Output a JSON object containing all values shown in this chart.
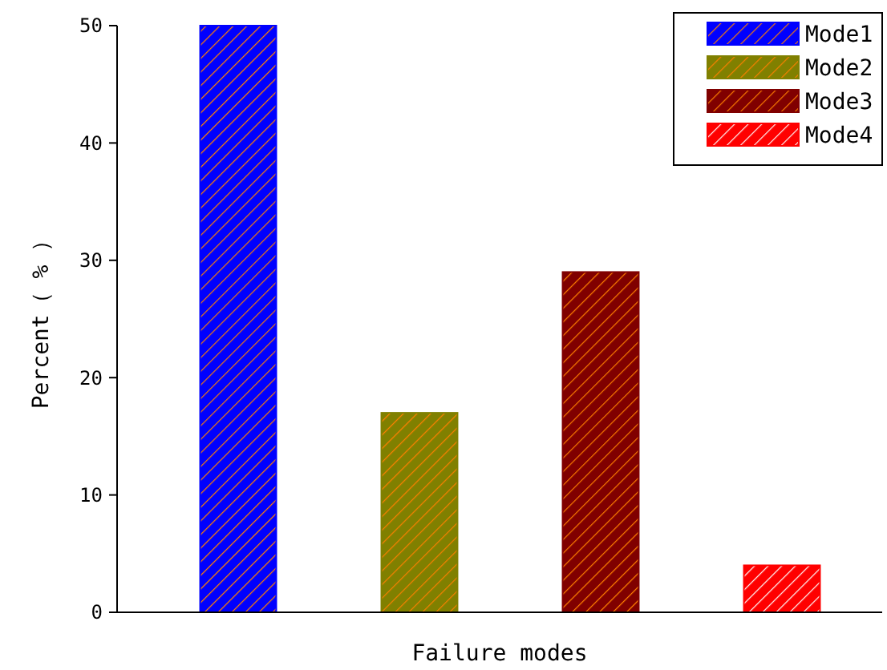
{
  "chart_data": {
    "type": "bar",
    "xlabel": "Failure modes",
    "ylabel": "Percent（ % ）",
    "categories": [
      null,
      null,
      null,
      null
    ],
    "series": [
      {
        "name": "Mode1",
        "color": "#0000ff",
        "values": [
          50,
          null,
          null,
          null
        ]
      },
      {
        "name": "Mode2",
        "color": "#808000",
        "values": [
          null,
          17,
          null,
          null
        ]
      },
      {
        "name": "Mode3",
        "color": "#800000",
        "values": [
          null,
          null,
          29,
          null
        ]
      },
      {
        "name": "Mode4",
        "color": "#ff0000",
        "values": [
          null,
          null,
          null,
          4
        ]
      }
    ],
    "ylim": [
      0,
      50
    ],
    "yticks": [
      0,
      10,
      20,
      30,
      40,
      50
    ],
    "legend": "top right"
  }
}
